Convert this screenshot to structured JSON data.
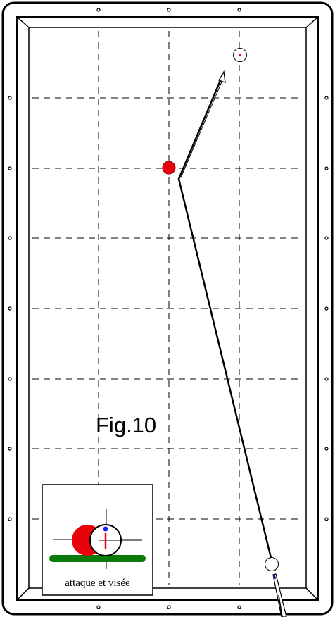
{
  "figure": {
    "label": "Fig.10"
  },
  "inset": {
    "caption": "attaque et visée"
  },
  "colors": {
    "object_ball": "#e8000b",
    "cue_ball_outline": "#000000",
    "cloth": "#ffffff",
    "cushion_strip": "#0a7a0a",
    "aim_dot": "#1a1aff",
    "contact_mark": "#e8000b",
    "grid_line": "#000000"
  },
  "icons": {
    "diamond": "small-circle",
    "direction": "open-arrowhead"
  }
}
